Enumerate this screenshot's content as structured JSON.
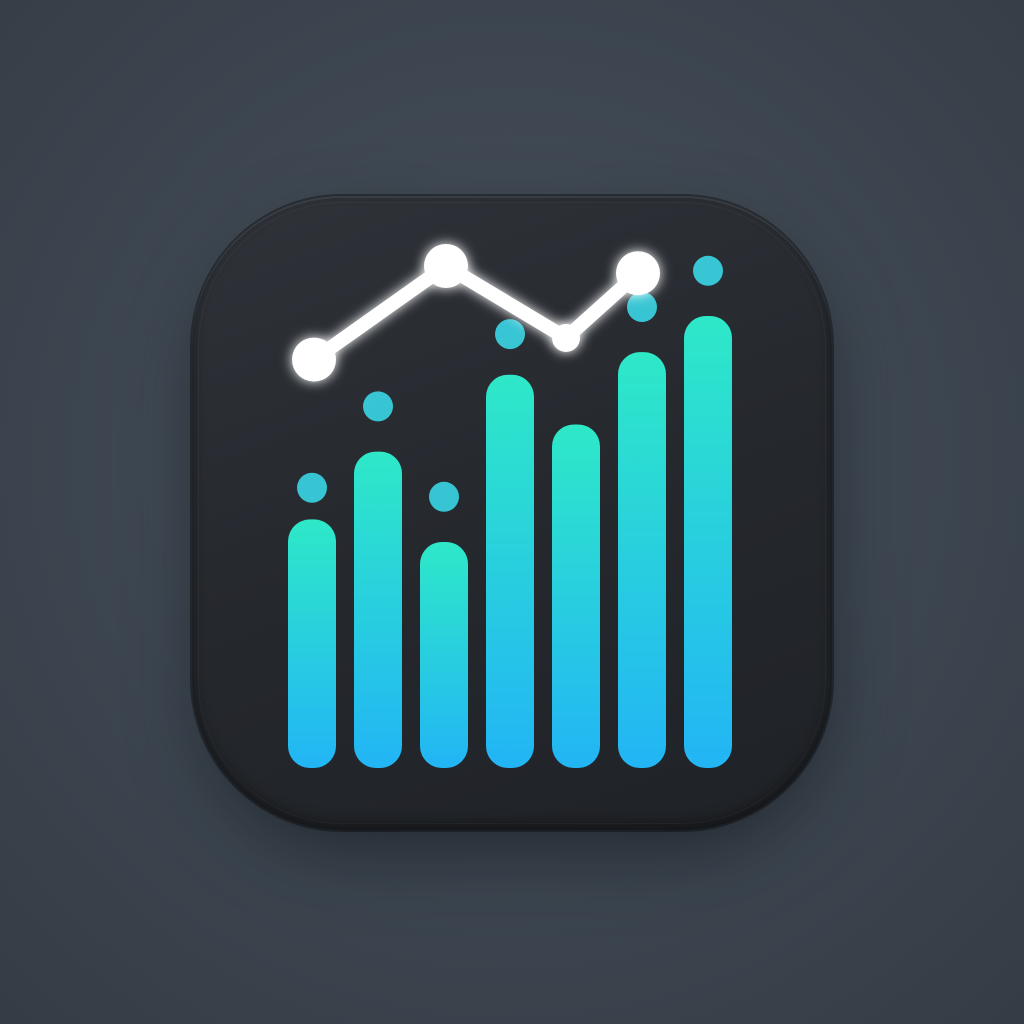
{
  "icon": {
    "name": "bar-chart-line-app-icon",
    "colors": {
      "background": "#3d4650",
      "tile": "#26292e",
      "bar_top": "#2ee8c8",
      "bar_bottom": "#22b5f5",
      "line": "#ffffff",
      "dot": "#3ad6e6"
    },
    "bars": [
      0.55,
      0.7,
      0.5,
      0.87,
      0.76,
      0.92,
      1.0
    ],
    "trend_points": [
      0.18,
      0.7,
      0.3,
      0.66
    ],
    "floating_dots": [
      {
        "bar": 0,
        "level": 0.62
      },
      {
        "bar": 1,
        "level": 0.8
      },
      {
        "bar": 2,
        "level": 0.6
      },
      {
        "bar": 3,
        "level": 0.96
      },
      {
        "bar": 5,
        "level": 1.02
      },
      {
        "bar": 6,
        "level": 1.1
      }
    ]
  }
}
